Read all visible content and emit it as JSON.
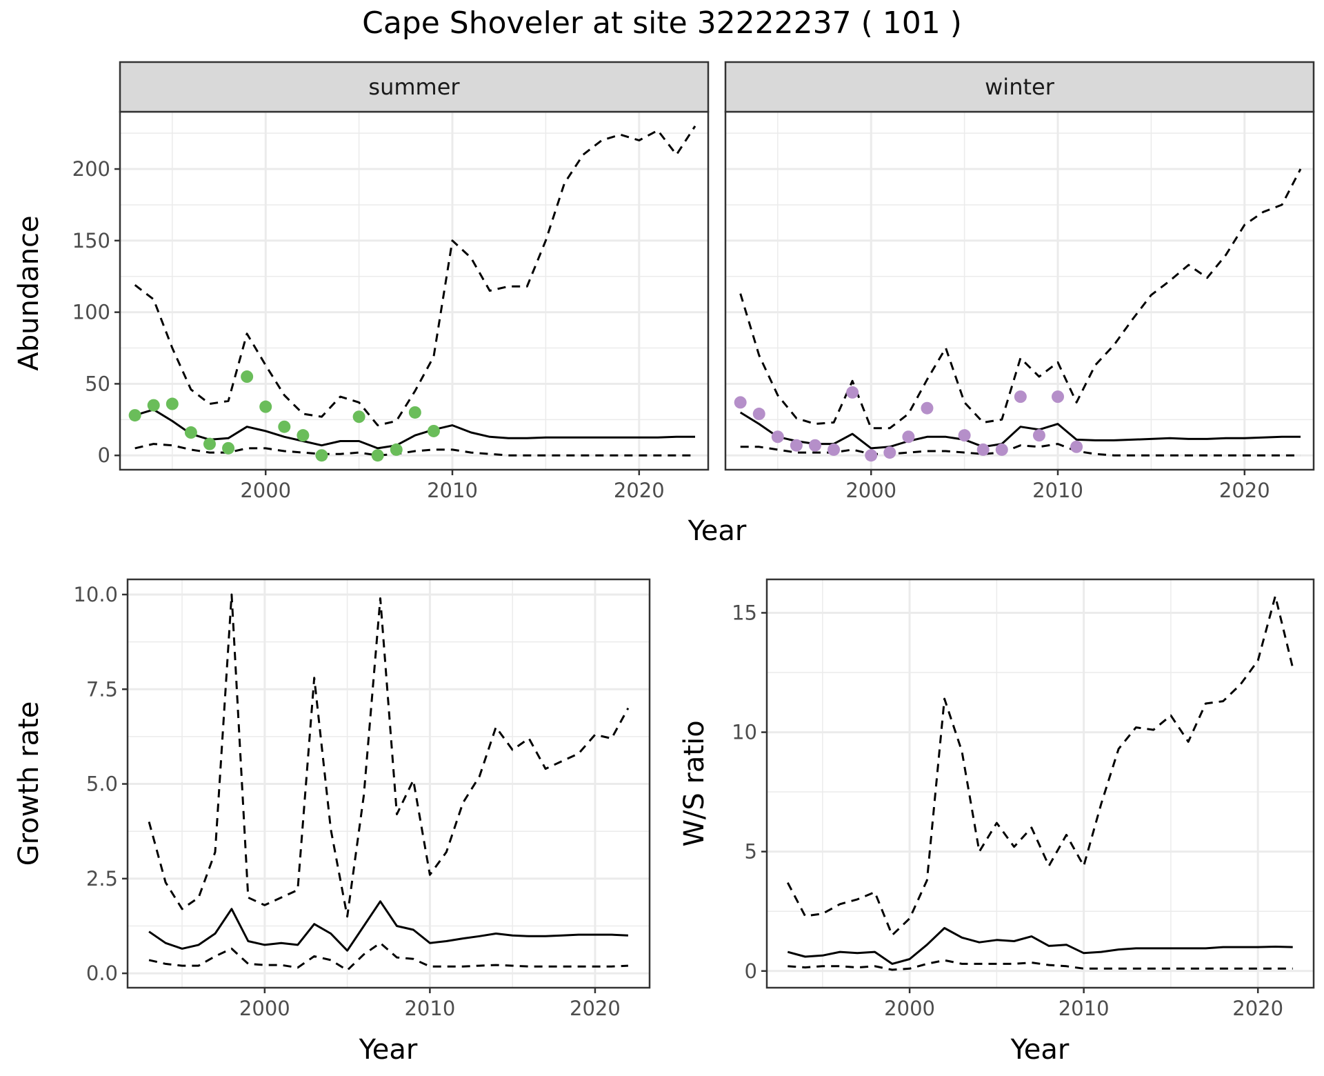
{
  "title": "Cape Shoveler at site 32222237 ( 101 )",
  "colors": {
    "summer_points": "#6abd5a",
    "winter_points": "#b58fc9",
    "line": "#000000",
    "strip": "#d9d9d9",
    "grid": "#ebebeb"
  },
  "chart_data": [
    {
      "type": "line",
      "panel": "summer",
      "strip_label": "summer",
      "xlabel": "Year",
      "ylabel": "Abundance",
      "xlim": [
        1992.2,
        2023.7
      ],
      "ylim": [
        -10,
        240
      ],
      "xticks": [
        2000,
        2010,
        2020
      ],
      "yticks": [
        0,
        50,
        100,
        150,
        200
      ],
      "grid": true,
      "series": [
        {
          "role": "estimate",
          "style": "solid",
          "x": [
            1993,
            1994,
            1995,
            1996,
            1997,
            1998,
            1999,
            2000,
            2001,
            2002,
            2003,
            2004,
            2005,
            2006,
            2007,
            2008,
            2009,
            2010,
            2011,
            2012,
            2013,
            2014,
            2015,
            2016,
            2017,
            2018,
            2019,
            2020,
            2021,
            2022,
            2023
          ],
          "y": [
            28,
            32,
            24,
            15,
            11,
            12,
            20,
            17,
            13,
            10,
            7,
            10,
            10,
            5,
            7,
            14,
            18,
            21,
            16,
            13,
            12,
            12,
            12.5,
            12.5,
            12.5,
            12.5,
            12.5,
            12.5,
            12.5,
            13,
            13
          ]
        },
        {
          "role": "upper",
          "style": "dashed",
          "x": [
            1993,
            1994,
            1995,
            1996,
            1997,
            1998,
            1999,
            2000,
            2001,
            2002,
            2003,
            2004,
            2005,
            2006,
            2007,
            2008,
            2009,
            2010,
            2011,
            2012,
            2013,
            2014,
            2015,
            2016,
            2017,
            2018,
            2019,
            2020,
            2021,
            2022,
            2023
          ],
          "y": [
            119,
            109,
            75,
            46,
            36,
            38,
            85,
            63,
            42,
            29,
            27,
            41,
            37,
            21,
            24,
            45,
            69,
            150,
            138,
            115,
            118,
            118,
            150,
            190,
            210,
            220,
            224,
            220,
            227,
            210,
            230
          ]
        },
        {
          "role": "lower",
          "style": "dashed",
          "x": [
            1993,
            1994,
            1995,
            1996,
            1997,
            1998,
            1999,
            2000,
            2001,
            2002,
            2003,
            2004,
            2005,
            2006,
            2007,
            2008,
            2009,
            2010,
            2011,
            2012,
            2013,
            2014,
            2015,
            2016,
            2017,
            2018,
            2019,
            2020,
            2021,
            2022,
            2023
          ],
          "y": [
            5,
            8,
            7,
            4,
            2,
            2,
            5,
            5,
            3,
            2,
            1,
            1,
            2,
            0,
            1,
            3,
            4,
            4,
            2,
            1,
            0,
            0,
            0,
            0,
            0,
            0,
            0,
            0,
            0,
            0,
            0
          ]
        }
      ],
      "points": {
        "x": [
          1993,
          1994,
          1995,
          1996,
          1997,
          1998,
          1999,
          2000,
          2001,
          2002,
          2003,
          2005,
          2006,
          2007,
          2008,
          2009
        ],
        "y": [
          28,
          35,
          36,
          16,
          8,
          5,
          55,
          34,
          20,
          14,
          0,
          27,
          0,
          4,
          30,
          17
        ]
      }
    },
    {
      "type": "line",
      "panel": "winter",
      "strip_label": "winter",
      "xlabel": "Year",
      "ylabel": "Abundance",
      "xlim": [
        1992.2,
        2023.7
      ],
      "ylim": [
        -10,
        240
      ],
      "xticks": [
        2000,
        2010,
        2020
      ],
      "yticks": [
        0,
        50,
        100,
        150,
        200
      ],
      "grid": true,
      "series": [
        {
          "role": "estimate",
          "style": "solid",
          "x": [
            1993,
            1994,
            1995,
            1996,
            1997,
            1998,
            1999,
            2000,
            2001,
            2002,
            2003,
            2004,
            2005,
            2006,
            2007,
            2008,
            2009,
            2010,
            2011,
            2012,
            2013,
            2014,
            2015,
            2016,
            2017,
            2018,
            2019,
            2020,
            2021,
            2022,
            2023
          ],
          "y": [
            30,
            22,
            13,
            10,
            8,
            8,
            15,
            5,
            6,
            10,
            13,
            13,
            11,
            6,
            8,
            20,
            18,
            22,
            11,
            10.5,
            10.5,
            11,
            11.5,
            12,
            11.5,
            11.5,
            12,
            12,
            12.5,
            13,
            13
          ]
        },
        {
          "role": "upper",
          "style": "dashed",
          "x": [
            1993,
            1994,
            1995,
            1996,
            1997,
            1998,
            1999,
            2000,
            2001,
            2002,
            2003,
            2004,
            2005,
            2006,
            2007,
            2008,
            2009,
            2010,
            2011,
            2012,
            2013,
            2014,
            2015,
            2016,
            2017,
            2018,
            2019,
            2020,
            2021,
            2022,
            2023
          ],
          "y": [
            113,
            70,
            42,
            26,
            22,
            23,
            52,
            19,
            19,
            29,
            53,
            75,
            37,
            23,
            25,
            68,
            55,
            65,
            37,
            63,
            77,
            95,
            112,
            122,
            133,
            124,
            140,
            161,
            170,
            175,
            200
          ]
        },
        {
          "role": "lower",
          "style": "dashed",
          "x": [
            1993,
            1994,
            1995,
            1996,
            1997,
            1998,
            1999,
            2000,
            2001,
            2002,
            2003,
            2004,
            2005,
            2006,
            2007,
            2008,
            2009,
            2010,
            2011,
            2012,
            2013,
            2014,
            2015,
            2016,
            2017,
            2018,
            2019,
            2020,
            2021,
            2022,
            2023
          ],
          "y": [
            6,
            6,
            4,
            2,
            2,
            2,
            4,
            1,
            1,
            2,
            3,
            3,
            2,
            1,
            2,
            7,
            6,
            8,
            3,
            1,
            0,
            0,
            0,
            0,
            0,
            0,
            0,
            0,
            0,
            0,
            0
          ]
        }
      ],
      "points": {
        "x": [
          1993,
          1994,
          1995,
          1996,
          1997,
          1998,
          1999,
          2000,
          2001,
          2002,
          2003,
          2005,
          2006,
          2007,
          2008,
          2009,
          2010,
          2011
        ],
        "y": [
          37,
          29,
          13,
          7,
          7,
          4,
          44,
          0,
          2,
          13,
          33,
          14,
          4,
          4,
          41,
          14,
          41,
          6
        ]
      }
    },
    {
      "type": "line",
      "panel": "growth",
      "xlabel": "Year",
      "ylabel": "Growth rate",
      "xlim": [
        1991.7,
        2023.3
      ],
      "ylim": [
        -0.38,
        10.4
      ],
      "xticks": [
        2000,
        2010,
        2020
      ],
      "yticks": [
        0.0,
        2.5,
        5.0,
        7.5,
        10.0
      ],
      "ytick_labels": [
        "0.0",
        "2.5",
        "5.0",
        "7.5",
        "10.0"
      ],
      "grid": true,
      "series": [
        {
          "role": "estimate",
          "style": "solid",
          "x": [
            1993,
            1994,
            1995,
            1996,
            1997,
            1998,
            1999,
            2000,
            2001,
            2002,
            2003,
            2004,
            2005,
            2006,
            2007,
            2008,
            2009,
            2010,
            2011,
            2012,
            2013,
            2014,
            2015,
            2016,
            2017,
            2018,
            2019,
            2020,
            2021,
            2022
          ],
          "y": [
            1.1,
            0.8,
            0.65,
            0.75,
            1.05,
            1.7,
            0.85,
            0.75,
            0.8,
            0.75,
            1.3,
            1.05,
            0.6,
            1.25,
            1.9,
            1.25,
            1.15,
            0.8,
            0.85,
            0.92,
            0.98,
            1.05,
            1.0,
            0.98,
            0.98,
            1.0,
            1.02,
            1.02,
            1.02,
            1.0
          ]
        },
        {
          "role": "upper",
          "style": "dashed",
          "x": [
            1993,
            1994,
            1995,
            1996,
            1997,
            1998,
            1999,
            2000,
            2001,
            2002,
            2003,
            2004,
            2005,
            2006,
            2007,
            2008,
            2009,
            2010,
            2011,
            2012,
            2013,
            2014,
            2015,
            2016,
            2017,
            2018,
            2019,
            2020,
            2021,
            2022
          ],
          "y": [
            4.0,
            2.4,
            1.7,
            2.0,
            3.2,
            10.0,
            2.0,
            1.8,
            2.0,
            2.2,
            7.8,
            3.8,
            1.5,
            4.7,
            9.9,
            4.2,
            5.1,
            2.6,
            3.2,
            4.5,
            5.2,
            6.5,
            5.9,
            6.2,
            5.4,
            5.6,
            5.8,
            6.3,
            6.2,
            7.0
          ]
        },
        {
          "role": "lower",
          "style": "dashed",
          "x": [
            1993,
            1994,
            1995,
            1996,
            1997,
            1998,
            1999,
            2000,
            2001,
            2002,
            2003,
            2004,
            2005,
            2006,
            2007,
            2008,
            2009,
            2010,
            2011,
            2012,
            2013,
            2014,
            2015,
            2016,
            2017,
            2018,
            2019,
            2020,
            2021,
            2022
          ],
          "y": [
            0.35,
            0.25,
            0.2,
            0.2,
            0.45,
            0.65,
            0.25,
            0.22,
            0.22,
            0.15,
            0.45,
            0.35,
            0.08,
            0.5,
            0.8,
            0.42,
            0.38,
            0.18,
            0.18,
            0.18,
            0.2,
            0.22,
            0.2,
            0.18,
            0.18,
            0.18,
            0.18,
            0.18,
            0.18,
            0.2
          ]
        }
      ]
    },
    {
      "type": "line",
      "panel": "ratio",
      "xlabel": "Year",
      "ylabel": "W/S ratio",
      "xlim": [
        1991.8,
        2023.2
      ],
      "ylim": [
        -0.7,
        16.4
      ],
      "xticks": [
        2000,
        2010,
        2020
      ],
      "yticks": [
        0,
        5,
        10,
        15
      ],
      "grid": true,
      "series": [
        {
          "role": "estimate",
          "style": "solid",
          "x": [
            1993,
            1994,
            1995,
            1996,
            1997,
            1998,
            1999,
            2000,
            2001,
            2002,
            2003,
            2004,
            2005,
            2006,
            2007,
            2008,
            2009,
            2010,
            2011,
            2012,
            2013,
            2014,
            2015,
            2016,
            2017,
            2018,
            2019,
            2020,
            2021,
            2022
          ],
          "y": [
            0.8,
            0.6,
            0.65,
            0.8,
            0.75,
            0.8,
            0.3,
            0.5,
            1.1,
            1.8,
            1.4,
            1.2,
            1.3,
            1.25,
            1.45,
            1.05,
            1.1,
            0.75,
            0.8,
            0.9,
            0.95,
            0.95,
            0.95,
            0.95,
            0.95,
            1.0,
            1.0,
            1.0,
            1.02,
            1.0
          ]
        },
        {
          "role": "upper",
          "style": "dashed",
          "x": [
            1993,
            1994,
            1995,
            1996,
            1997,
            1998,
            1999,
            2000,
            2001,
            2002,
            2003,
            2004,
            2005,
            2006,
            2007,
            2008,
            2009,
            2010,
            2011,
            2012,
            2013,
            2014,
            2015,
            2016,
            2017,
            2018,
            2019,
            2020,
            2021,
            2022
          ],
          "y": [
            3.7,
            2.3,
            2.4,
            2.8,
            3.0,
            3.3,
            1.5,
            2.2,
            3.8,
            11.4,
            9.2,
            5.0,
            6.2,
            5.2,
            6.0,
            4.4,
            5.7,
            4.4,
            7.0,
            9.3,
            10.2,
            10.1,
            10.7,
            9.6,
            11.2,
            11.3,
            12.0,
            13.0,
            15.7,
            12.7
          ]
        },
        {
          "role": "lower",
          "style": "dashed",
          "x": [
            1993,
            1994,
            1995,
            1996,
            1997,
            1998,
            1999,
            2000,
            2001,
            2002,
            2003,
            2004,
            2005,
            2006,
            2007,
            2008,
            2009,
            2010,
            2011,
            2012,
            2013,
            2014,
            2015,
            2016,
            2017,
            2018,
            2019,
            2020,
            2021,
            2022
          ],
          "y": [
            0.2,
            0.15,
            0.2,
            0.2,
            0.15,
            0.2,
            0.05,
            0.1,
            0.3,
            0.45,
            0.3,
            0.3,
            0.3,
            0.3,
            0.35,
            0.25,
            0.2,
            0.1,
            0.1,
            0.1,
            0.1,
            0.1,
            0.1,
            0.1,
            0.1,
            0.1,
            0.1,
            0.1,
            0.1,
            0.1
          ]
        }
      ]
    }
  ]
}
